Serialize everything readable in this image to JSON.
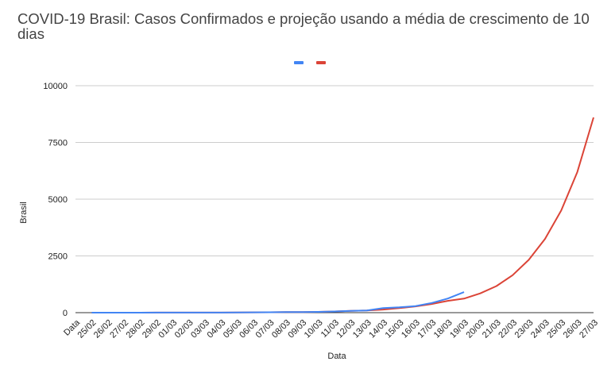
{
  "chart_data": {
    "type": "line",
    "title": "COVID-19 Brasil: Casos Confirmados e projeção usando a média de crescimento de 10 dias",
    "xlabel": "Data",
    "ylabel": "Brasil",
    "ylim": [
      0,
      10000
    ],
    "yticks": [
      0,
      2500,
      5000,
      7500,
      10000
    ],
    "grid": "horizontal",
    "legend_position": "top",
    "categories": [
      "Data",
      "25/02",
      "26/02",
      "27/02",
      "28/02",
      "29/02",
      "01/03",
      "02/03",
      "03/03",
      "04/03",
      "05/03",
      "06/03",
      "07/03",
      "08/03",
      "09/03",
      "10/03",
      "11/03",
      "12/03",
      "13/03",
      "14/03",
      "15/03",
      "16/03",
      "17/03",
      "18/03",
      "19/03",
      "20/03",
      "21/03",
      "22/03",
      "23/03",
      "24/03",
      "25/03",
      "26/03",
      "27/03"
    ],
    "series": [
      {
        "color": "#4285f4",
        "values": [
          null,
          1,
          1,
          1,
          1,
          2,
          2,
          2,
          2,
          4,
          8,
          13,
          19,
          25,
          25,
          34,
          52,
          77,
          98,
          200,
          234,
          291,
          428,
          621,
          904,
          null,
          null,
          null,
          null,
          null,
          null,
          null,
          null
        ]
      },
      {
        "color": "#db4437",
        "values": [
          null,
          1,
          1,
          1,
          1,
          2,
          2,
          2,
          2,
          4,
          8,
          13,
          19,
          25,
          25,
          34,
          52,
          77,
          98,
          135,
          200,
          275,
          380,
          520,
          620,
          850,
          1170,
          1650,
          2330,
          3250,
          4500,
          6200,
          8600
        ]
      }
    ]
  }
}
